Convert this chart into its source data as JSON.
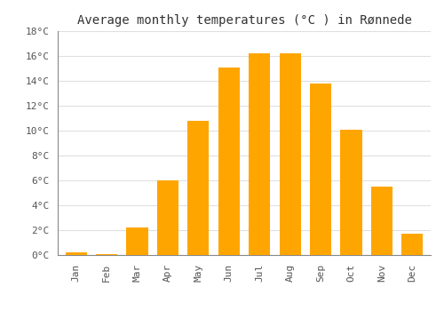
{
  "title": "Average monthly temperatures (°C ) in Rønnede",
  "months": [
    "Jan",
    "Feb",
    "Mar",
    "Apr",
    "May",
    "Jun",
    "Jul",
    "Aug",
    "Sep",
    "Oct",
    "Nov",
    "Dec"
  ],
  "values": [
    0.2,
    0.1,
    2.2,
    6.0,
    10.8,
    15.1,
    16.2,
    16.2,
    13.8,
    10.1,
    5.5,
    1.7
  ],
  "bar_color": "#FFA500",
  "bar_edge_color": "#FFA500",
  "ylim": [
    0,
    18
  ],
  "yticks": [
    0,
    2,
    4,
    6,
    8,
    10,
    12,
    14,
    16,
    18
  ],
  "ytick_labels": [
    "0°C",
    "2°C",
    "4°C",
    "6°C",
    "8°C",
    "10°C",
    "12°C",
    "14°C",
    "16°C",
    "18°C"
  ],
  "background_color": "#ffffff",
  "grid_color": "#e0e0e0",
  "title_fontsize": 10,
  "tick_fontsize": 8,
  "font_family": "monospace",
  "bar_width": 0.7
}
